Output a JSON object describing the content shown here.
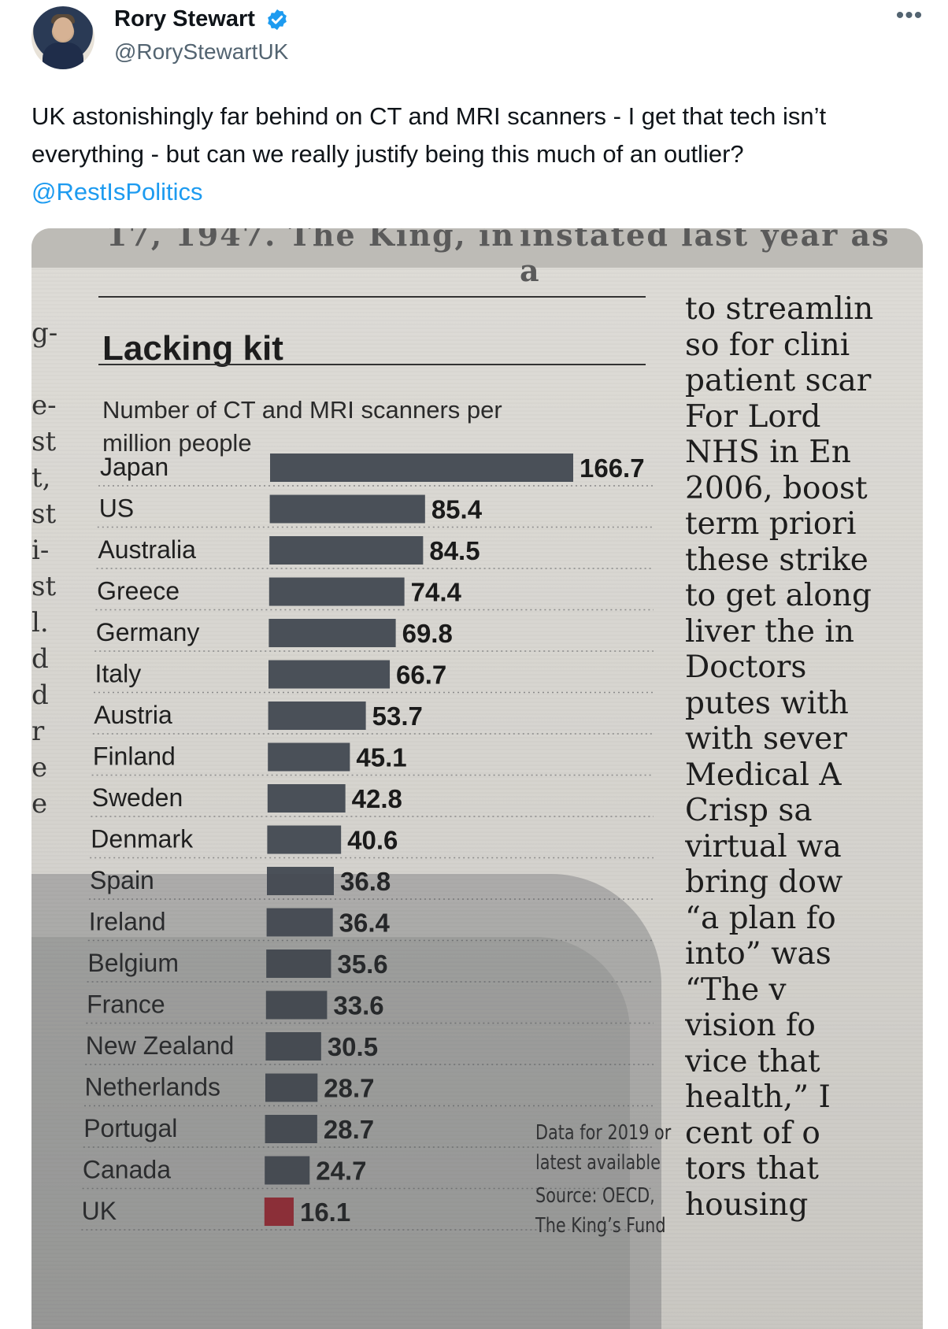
{
  "author": {
    "display_name": "Rory Stewart",
    "handle": "@RoryStewartUK",
    "verified_icon": "verified-badge-icon",
    "more_icon": "more-options-icon"
  },
  "tweet": {
    "text": "UK astonishingly far behind on CT and MRI scanners - I get that tech isn’t everything - but can we really justify being this much of an outlier?",
    "mention": "@RestIsPolitics"
  },
  "newspaper": {
    "top_strip_left": "17, 1947. The King, in",
    "top_strip_right": "instated last year as a",
    "left_edge_fragments": [
      "g-",
      "",
      "e-",
      "st",
      "t,",
      "st",
      "i-",
      "st",
      "l.",
      "d",
      "d",
      "r",
      "e",
      "e"
    ],
    "note": [
      "Data for 2019 or",
      "latest available"
    ],
    "source": [
      "Source: OECD,",
      "The King’s Fund"
    ],
    "right_column": [
      "to streamlin",
      "so for clini",
      "patient scar",
      "For Lord",
      "NHS in En",
      "2006, boost",
      "term priori",
      "these strike",
      "to get along",
      "liver the in",
      "Doctors",
      "putes with",
      "with sever",
      "Medical A",
      "Crisp sa",
      "virtual wa",
      "bring dow",
      "“a plan fo",
      "into” was",
      "“The v",
      "vision fo",
      "vice that",
      "health,” I",
      "cent of o",
      "tors that",
      "housing"
    ]
  },
  "colors": {
    "bar": "#4a5058",
    "bar_highlight": "#b8232f",
    "mention": "#1d9bf0",
    "verified": "#1d9bf0"
  },
  "chart_data": {
    "type": "bar",
    "orientation": "horizontal",
    "title": "Lacking kit",
    "subtitle": "Number of CT and MRI scanners per million people",
    "categories": [
      "Japan",
      "US",
      "Australia",
      "Greece",
      "Germany",
      "Italy",
      "Austria",
      "Finland",
      "Sweden",
      "Denmark",
      "Spain",
      "Ireland",
      "Belgium",
      "France",
      "New Zealand",
      "Netherlands",
      "Portugal",
      "Canada",
      "UK"
    ],
    "values": [
      166.7,
      85.4,
      84.5,
      74.4,
      69.8,
      66.7,
      53.7,
      45.1,
      42.8,
      40.6,
      36.8,
      36.4,
      35.6,
      33.6,
      30.5,
      28.7,
      28.7,
      24.7,
      16.1
    ],
    "value_labels": [
      "166.7",
      "85.4",
      "84.5",
      "74.4",
      "69.8",
      "66.7",
      "53.7",
      "45.1",
      "42.8",
      "40.6",
      "36.8",
      "36.4",
      "35.6",
      "33.6",
      "30.5",
      "28.7",
      "28.7",
      "24.7",
      "16.1"
    ],
    "highlight": "UK",
    "xlim": [
      0,
      166.7
    ],
    "grid": false,
    "legend": "none"
  }
}
